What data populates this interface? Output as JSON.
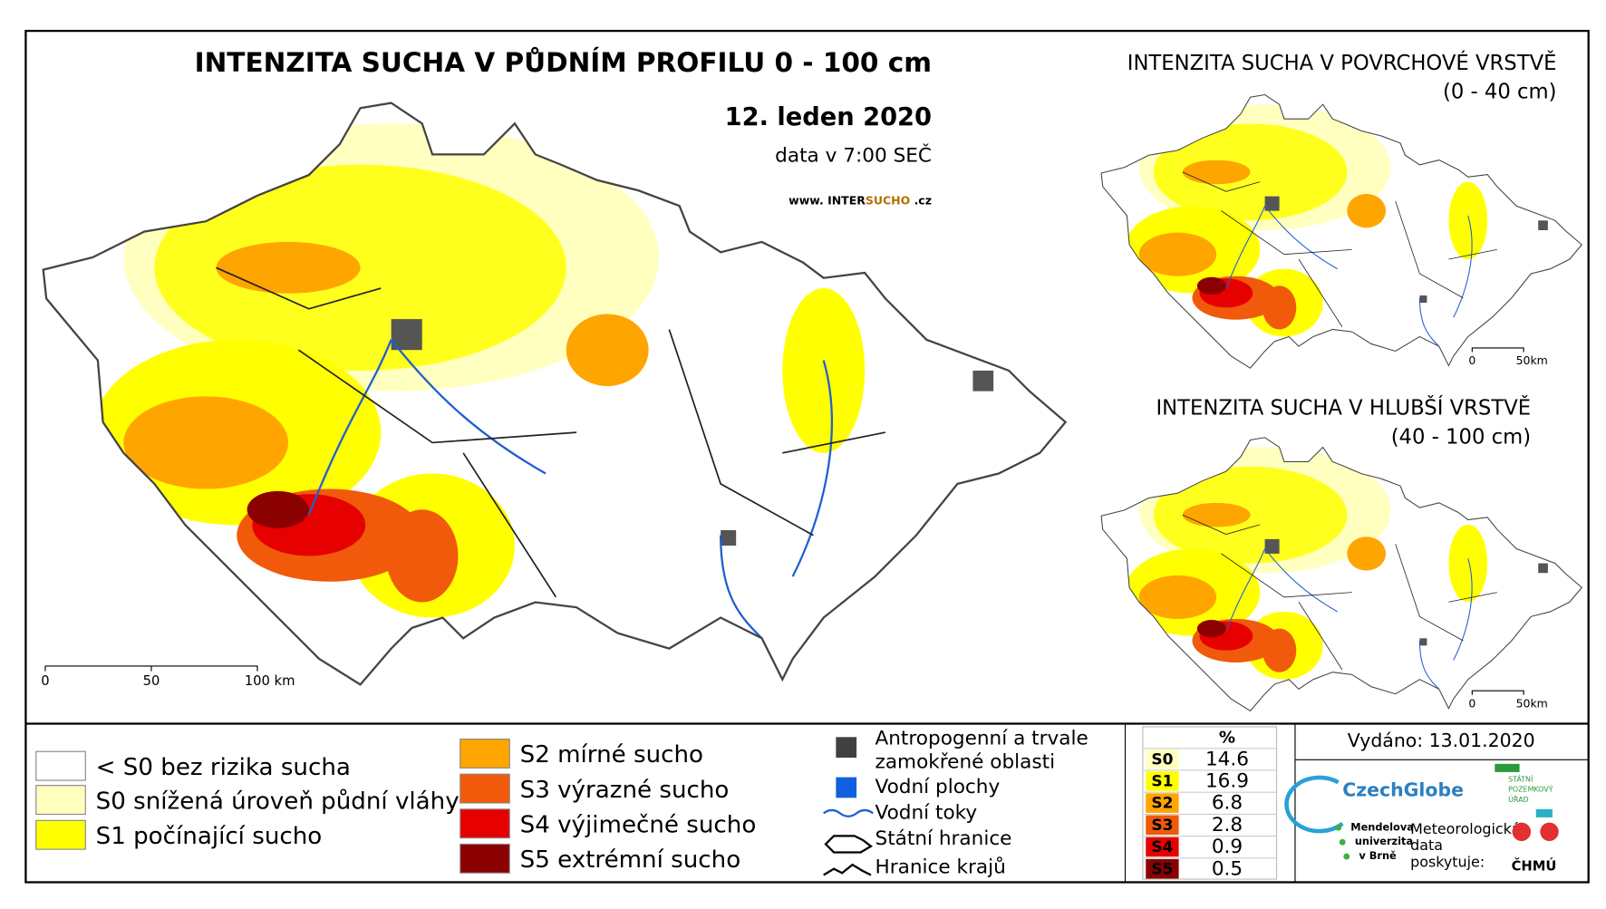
{
  "header": {
    "title": "INTENZITA SUCHA V PŮDNÍM PROFILU 0 - 100 cm",
    "date": "12. leden 2020",
    "time": "data v 7:00 SEČ",
    "web_prefix": "www.",
    "web_a": "INTER",
    "web_b": "SUCHO",
    "web_c": ".cz"
  },
  "main_scale": [
    "0",
    "50",
    "100 km"
  ],
  "inset_top": {
    "title": "INTENZITA SUCHA V POVRCHOVÉ VRSTVĚ",
    "subtitle": "(0 - 40 cm)",
    "scale": [
      "0",
      "50km"
    ]
  },
  "inset_bottom": {
    "title": "INTENZITA SUCHA V HLUBŠÍ VRSTVĚ",
    "subtitle": "(40 - 100 cm)",
    "scale": [
      "0",
      "50km"
    ]
  },
  "legend_classes": [
    {
      "label": "< S0 bez rizika sucha",
      "color": "#ffffff"
    },
    {
      "label": "S0 snížená úroveň půdní vláhy",
      "color": "#ffffc0"
    },
    {
      "label": "S1 počínající sucho",
      "color": "#ffff00"
    },
    {
      "label": "S2 mírné sucho",
      "color": "#ffa500"
    },
    {
      "label": "S3 výrazné sucho",
      "color": "#f05a0a"
    },
    {
      "label": "S4 výjimečné sucho",
      "color": "#e60000"
    },
    {
      "label": "S5 extrémní sucho",
      "color": "#8b0000"
    }
  ],
  "legend_symbols": {
    "anthropogenic_1": "Antropogenní a trvale",
    "anthropogenic_2": "zamokřené oblasti",
    "water_areas": "Vodní plochy",
    "rivers": "Vodní toky",
    "state_border": "Státní hranice",
    "regions": "Hranice krajů"
  },
  "table": {
    "header": "%",
    "rows": [
      {
        "class": "S0",
        "value": 14.6,
        "color": "#ffffc0"
      },
      {
        "class": "S1",
        "value": 16.9,
        "color": "#ffff00"
      },
      {
        "class": "S2",
        "value": 6.8,
        "color": "#ffa500"
      },
      {
        "class": "S3",
        "value": 2.8,
        "color": "#f05a0a"
      },
      {
        "class": "S4",
        "value": 0.9,
        "color": "#e60000"
      },
      {
        "class": "S5",
        "value": 0.5,
        "color": "#8b0000"
      }
    ]
  },
  "issued": "Vydáno: 13.01.2020",
  "logos": {
    "czechglobe": "CzechGlobe",
    "spu": [
      "STÁTNÍ",
      "POZEMKOVÝ",
      "ÚŘAD"
    ],
    "mendel": [
      "Mendelova",
      "univerzita",
      "v Brně"
    ],
    "met": [
      "Meteorologická",
      "data",
      "poskytuje:"
    ],
    "chmu": "ČHMÚ"
  }
}
